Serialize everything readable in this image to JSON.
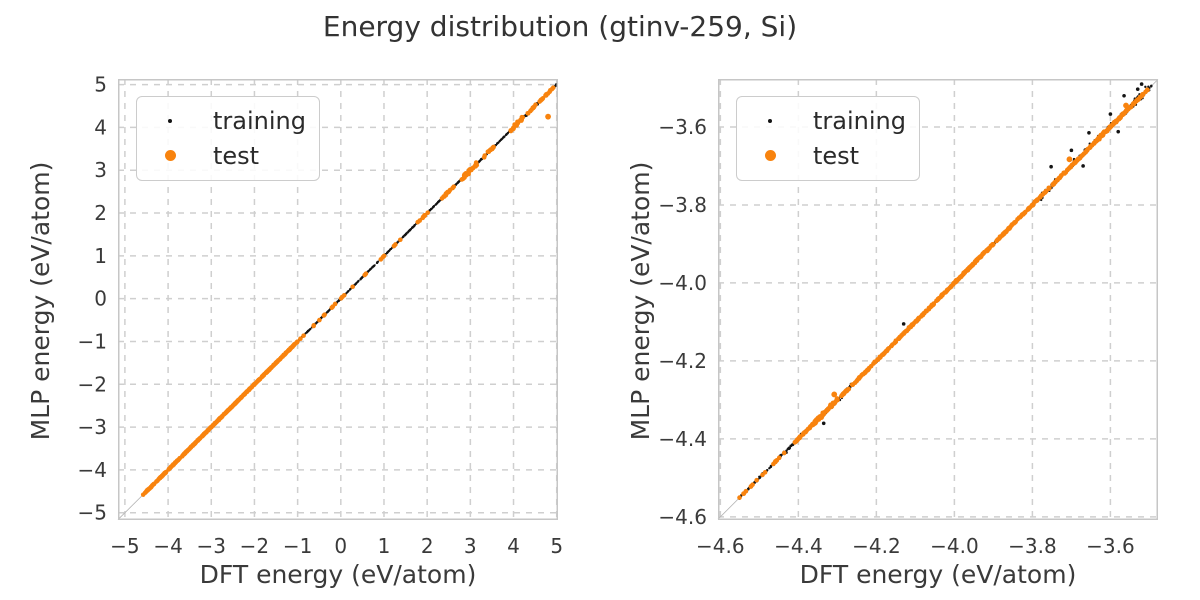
{
  "figure": {
    "title": "Energy distribution (gtinv-259, Si)"
  },
  "colors": {
    "training": "#141414",
    "test": "#f8830e",
    "grid": "#cfcfcf",
    "spine": "#c6c6c6",
    "identity_line": "#b3b3b3",
    "text": "#3a3a3a"
  },
  "legend": {
    "items": [
      {
        "label": "training",
        "color": "#141414"
      },
      {
        "label": "test",
        "color": "#f8830e"
      }
    ]
  },
  "chart_data": [
    {
      "type": "scatter",
      "title": "",
      "xlabel": "DFT energy (eV/atom)",
      "ylabel": "MLP energy (eV/atom)",
      "xlim": [
        -5.16,
        5.03
      ],
      "ylim": [
        -5.17,
        5.13
      ],
      "grid": true,
      "legend_position": "upper-left",
      "identity_line": true,
      "xticks": {
        "values": [
          -5,
          -4,
          -3,
          -2,
          -1,
          0,
          1,
          2,
          3,
          4,
          5
        ],
        "labels": [
          "−5",
          "−4",
          "−3",
          "−2",
          "−1",
          "0",
          "1",
          "2",
          "3",
          "4",
          "5"
        ]
      },
      "yticks": {
        "values": [
          -5,
          -4,
          -3,
          -2,
          -1,
          0,
          1,
          2,
          3,
          4,
          5
        ],
        "labels": [
          "−5",
          "−4",
          "−3",
          "−2",
          "−1",
          "0",
          "1",
          "2",
          "3",
          "4",
          "5"
        ]
      },
      "series": [
        {
          "name": "training",
          "color": "#141414",
          "radius": 1.1,
          "relation": "y=x",
          "segments": [
            {
              "from": -4.59,
              "to": 4.98,
              "n": 950,
              "jitter": 0.01
            },
            {
              "from": 1.8,
              "to": 3.5,
              "n": 60,
              "jitter": 0.02
            },
            {
              "from": 3.9,
              "to": 5.0,
              "n": 80,
              "jitter": 0.04
            }
          ],
          "points": []
        },
        {
          "name": "test",
          "color": "#f8830e",
          "radius": 2.3,
          "relation": "y=x",
          "segments": [
            {
              "from": -4.58,
              "to": -1.0,
              "n": 350,
              "jitter": 0.012
            },
            {
              "from": -1.0,
              "to": 1.6,
              "n": 22,
              "jitter": 0.012
            },
            {
              "from": 1.78,
              "to": 2.02,
              "n": 9,
              "jitter": 0.02
            },
            {
              "from": 2.3,
              "to": 2.62,
              "n": 14,
              "jitter": 0.03
            },
            {
              "from": 2.8,
              "to": 3.15,
              "n": 24,
              "jitter": 0.07
            },
            {
              "from": 3.32,
              "to": 3.62,
              "n": 12,
              "jitter": 0.03
            },
            {
              "from": 3.9,
              "to": 4.25,
              "n": 18,
              "jitter": 0.07
            },
            {
              "from": 4.32,
              "to": 4.58,
              "n": 10,
              "jitter": 0.03
            },
            {
              "from": 4.6,
              "to": 4.92,
              "n": 14,
              "jitter": 0.02
            }
          ],
          "points": [
            [
              4.8,
              4.25
            ]
          ]
        }
      ]
    },
    {
      "type": "scatter",
      "title": "",
      "xlabel": "DFT energy (eV/atom)",
      "ylabel": "MLP energy (eV/atom)",
      "xlim": [
        -4.606,
        -3.478
      ],
      "ylim": [
        -4.608,
        -3.477
      ],
      "grid": true,
      "legend_position": "upper-left",
      "identity_line": true,
      "xticks": {
        "values": [
          -4.6,
          -4.4,
          -4.2,
          -4.0,
          -3.8,
          -3.6
        ],
        "labels": [
          "−4.6",
          "−4.4",
          "−4.2",
          "−4.0",
          "−3.8",
          "−3.6"
        ]
      },
      "yticks": {
        "values": [
          -4.6,
          -4.4,
          -4.2,
          -4.0,
          -3.8,
          -3.6
        ],
        "labels": [
          "−4.6",
          "−4.4",
          "−4.2",
          "−4.0",
          "−3.8",
          "−3.6"
        ]
      },
      "series": [
        {
          "name": "training",
          "color": "#141414",
          "radius": 1.2,
          "relation": "y=x",
          "segments": [
            {
              "from": -4.553,
              "to": -3.495,
              "n": 420,
              "jitter": 0.0045
            },
            {
              "from": -3.8,
              "to": -3.495,
              "n": 90,
              "jitter": 0.013
            },
            {
              "from": -4.45,
              "to": -4.24,
              "n": 55,
              "jitter": 0.009
            },
            {
              "from": -4.24,
              "to": -3.92,
              "n": 45,
              "jitter": 0.007
            },
            {
              "from": -3.6,
              "to": -3.5,
              "n": 40,
              "jitter": 0.016
            }
          ],
          "points": [
            [
              -3.752,
              -3.702
            ],
            [
              -3.565,
              -3.52
            ],
            [
              -3.53,
              -3.503
            ],
            [
              -3.6,
              -3.567
            ],
            [
              -3.655,
              -3.615
            ],
            [
              -3.58,
              -3.612
            ],
            [
              -3.67,
              -3.7
            ],
            [
              -4.13,
              -4.105
            ],
            [
              -4.335,
              -4.36
            ],
            [
              -3.7,
              -3.66
            ],
            [
              -3.52,
              -3.49
            ]
          ]
        },
        {
          "name": "test",
          "color": "#f8830e",
          "radius": 2.3,
          "relation": "y=x",
          "segments": [
            {
              "from": -4.553,
              "to": -4.405,
              "n": 22,
              "jitter": 0.0015
            },
            {
              "from": -4.405,
              "to": -3.503,
              "n": 520,
              "jitter": 0.0028
            },
            {
              "from": -4.365,
              "to": -4.3,
              "n": 45,
              "jitter": 0.007
            },
            {
              "from": -3.98,
              "to": -3.92,
              "n": 18,
              "jitter": 0.004
            },
            {
              "from": -3.64,
              "to": -3.55,
              "n": 40,
              "jitter": 0.005
            }
          ],
          "points": [
            [
              -3.705,
              -3.683
            ],
            [
              -4.308,
              -4.286
            ],
            [
              -3.56,
              -3.545
            ]
          ]
        }
      ]
    }
  ]
}
